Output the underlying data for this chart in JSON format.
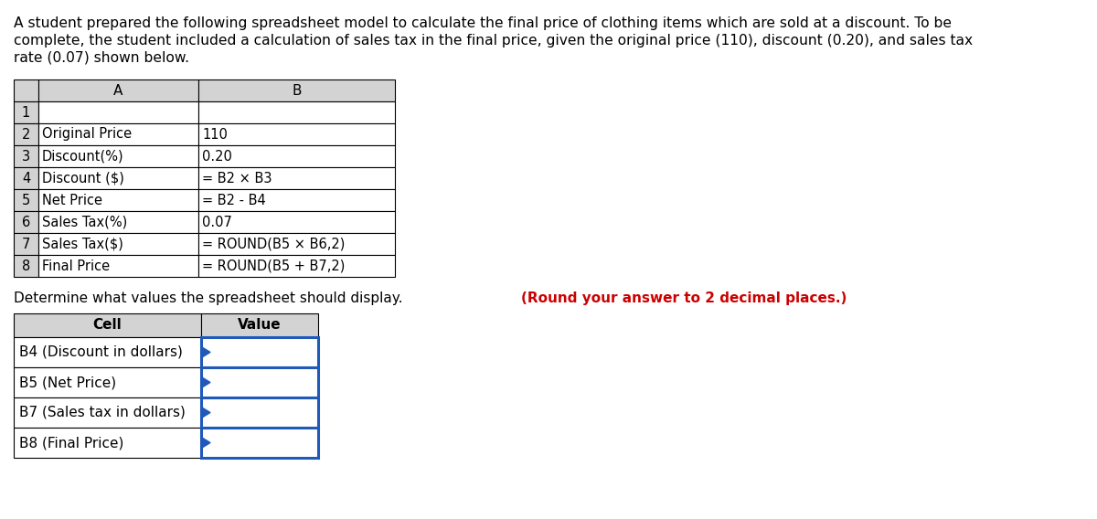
{
  "intro_line1": "A student prepared the following spreadsheet model to calculate the final price of clothing items which are sold at a discount. To be",
  "intro_line2": "complete, the student included a calculation of sales tax in the final price, given the original price (110), discount (0.20), and sales tax",
  "intro_line3": "rate (0.07) shown below.",
  "spreadsheet_rows": [
    [
      "1",
      "",
      ""
    ],
    [
      "2",
      "Original Price",
      "110"
    ],
    [
      "3",
      "Discount(%)",
      "0.20"
    ],
    [
      "4",
      "Discount ($)",
      "= B2 × B3"
    ],
    [
      "5",
      "Net Price",
      "= B2 - B4"
    ],
    [
      "6",
      "Sales Tax(%)",
      "0.07"
    ],
    [
      "7",
      "Sales Tax($)",
      "= ROUND(B5 × B6,2)"
    ],
    [
      "8",
      "Final Price",
      "= ROUND(B5 + B7,2)"
    ]
  ],
  "determine_text_normal": "Determine what values the spreadsheet should display. ",
  "determine_text_bold_red": "(Round your answer to 2 decimal places.)",
  "answer_table_rows": [
    "B4 (Discount in dollars)",
    "B5 (Net Price)",
    "B7 (Sales tax in dollars)",
    "B8 (Final Price)"
  ],
  "header_bg": "#d3d3d3",
  "cell_bg": "#ffffff",
  "border_color": "#000000",
  "answer_border_color": "#1f5aba",
  "monospace_font": "Courier New",
  "normal_font": "DejaVu Sans",
  "intro_fontsize": 11.2,
  "table_fontsize": 10.5,
  "ans_fontsize": 11.0
}
